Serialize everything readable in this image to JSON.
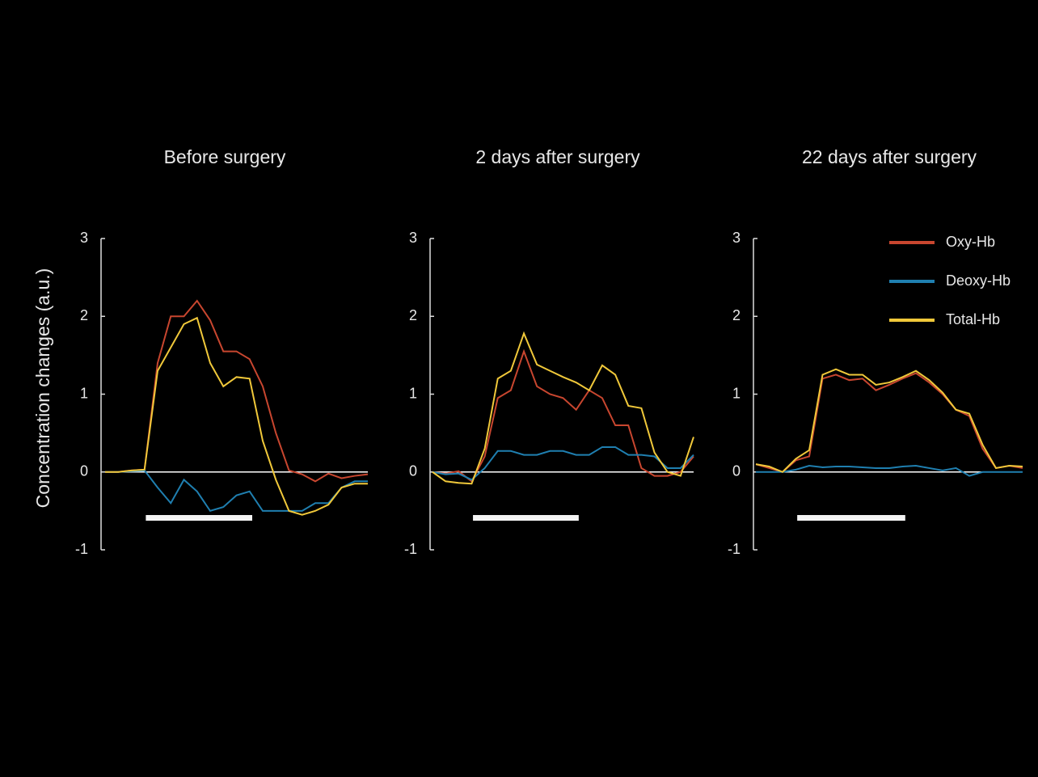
{
  "chart_data": [
    {
      "type": "line",
      "title": "Before surgery",
      "ylabel": "Concentration changes (a.u.)",
      "categories": [
        null,
        null,
        null,
        null,
        null,
        null,
        null,
        null,
        null,
        null,
        null,
        null,
        null,
        null,
        null,
        null,
        null,
        null,
        null,
        null,
        null
      ],
      "series": [
        {
          "color": "#c8462f",
          "values": [
            0,
            0,
            0.02,
            0.03,
            1.4,
            2.0,
            2.0,
            2.2,
            1.95,
            1.55,
            1.55,
            1.45,
            1.1,
            0.5,
            0.02,
            -0.03,
            -0.12,
            -0.02,
            -0.08,
            -0.05,
            -0.03
          ]
        },
        {
          "color": "#1f7fb0",
          "values": [
            0,
            0,
            0.01,
            0.02,
            -0.2,
            -0.4,
            -0.1,
            -0.25,
            -0.5,
            -0.45,
            -0.3,
            -0.25,
            -0.5,
            -0.5,
            -0.5,
            -0.5,
            -0.4,
            -0.4,
            -0.2,
            -0.12,
            -0.12
          ]
        },
        {
          "color": "#f0c83a",
          "values": [
            0,
            0,
            0.02,
            0.03,
            1.3,
            1.6,
            1.9,
            1.98,
            1.4,
            1.1,
            1.22,
            1.2,
            0.4,
            -0.1,
            -0.5,
            -0.55,
            -0.5,
            -0.42,
            -0.2,
            -0.15,
            -0.15
          ]
        }
      ],
      "ylim": [
        -1,
        3
      ],
      "yticks": [
        -1,
        0,
        1,
        2,
        3
      ]
    },
    {
      "type": "line",
      "title": "2 days after surgery",
      "categories": [
        null,
        null,
        null,
        null,
        null,
        null,
        null,
        null,
        null,
        null,
        null,
        null,
        null,
        null,
        null,
        null,
        null,
        null,
        null,
        null,
        null
      ],
      "series": [
        {
          "color": "#c8462f",
          "values": [
            0,
            -0.02,
            0.01,
            -0.12,
            0.2,
            0.95,
            1.05,
            1.55,
            1.1,
            1.0,
            0.95,
            0.8,
            1.05,
            0.95,
            0.6,
            0.6,
            0.05,
            -0.05,
            -0.05,
            0,
            0.2
          ]
        },
        {
          "color": "#1f7fb0",
          "values": [
            0,
            -0.03,
            -0.02,
            -0.1,
            0.05,
            0.27,
            0.27,
            0.22,
            0.22,
            0.27,
            0.27,
            0.22,
            0.22,
            0.32,
            0.32,
            0.22,
            0.22,
            0.2,
            0.05,
            0.05,
            0.22
          ]
        },
        {
          "color": "#f0c83a",
          "values": [
            0,
            -0.12,
            -0.14,
            -0.15,
            0.3,
            1.2,
            1.3,
            1.78,
            1.38,
            1.3,
            1.22,
            1.15,
            1.05,
            1.37,
            1.25,
            0.85,
            0.82,
            0.25,
            0,
            -0.05,
            0.45
          ]
        }
      ],
      "ylim": [
        -1,
        3
      ],
      "yticks": [
        -1,
        0,
        1,
        2,
        3
      ]
    },
    {
      "type": "line",
      "title": "22 days after surgery",
      "categories": [
        null,
        null,
        null,
        null,
        null,
        null,
        null,
        null,
        null,
        null,
        null,
        null,
        null,
        null,
        null,
        null,
        null,
        null,
        null,
        null,
        null
      ],
      "series": [
        {
          "name": "Oxy-Hb",
          "color": "#c8462f",
          "values": [
            0.1,
            0.05,
            0,
            0.15,
            0.2,
            1.2,
            1.25,
            1.18,
            1.2,
            1.05,
            1.12,
            1.2,
            1.27,
            1.15,
            1.0,
            0.8,
            0.72,
            0.3,
            0.05,
            0.08,
            0.05
          ]
        },
        {
          "name": "Deoxy-Hb",
          "color": "#1f7fb0",
          "values": [
            0,
            0,
            0,
            0.03,
            0.08,
            0.06,
            0.07,
            0.07,
            0.06,
            0.05,
            0.05,
            0.07,
            0.08,
            0.05,
            0.02,
            0.05,
            -0.05,
            0,
            0,
            0,
            0
          ]
        },
        {
          "name": "Total-Hb",
          "color": "#f0c83a",
          "values": [
            0.1,
            0.07,
            0,
            0.17,
            0.28,
            1.25,
            1.32,
            1.25,
            1.25,
            1.12,
            1.15,
            1.22,
            1.3,
            1.18,
            1.02,
            0.8,
            0.75,
            0.35,
            0.05,
            0.08,
            0.07
          ]
        }
      ],
      "ylim": [
        -1,
        3
      ],
      "yticks": [
        -1,
        0,
        1,
        2,
        3
      ],
      "legend": "upper right"
    }
  ]
}
